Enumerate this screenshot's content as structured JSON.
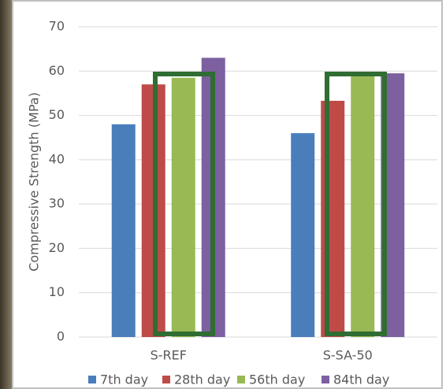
{
  "chart_data": {
    "type": "bar",
    "y_label": "Compressive Strength (MPa)",
    "categories": [
      "S-REF",
      "S-SA-50"
    ],
    "series": [
      {
        "name": "7th day",
        "color": "#4a7ebb",
        "values": [
          48,
          46
        ]
      },
      {
        "name": "28th day",
        "color": "#be4b48",
        "values": [
          57,
          53.3
        ]
      },
      {
        "name": "56th day",
        "color": "#98b954",
        "values": [
          58.5,
          58.8
        ]
      },
      {
        "name": "84th day",
        "color": "#7d60a0",
        "values": [
          63,
          59.5
        ]
      }
    ],
    "ylim": [
      0,
      70
    ],
    "yticks": [
      0,
      10,
      20,
      30,
      40,
      50,
      60,
      70
    ],
    "grid": true,
    "legend": "bottom"
  }
}
